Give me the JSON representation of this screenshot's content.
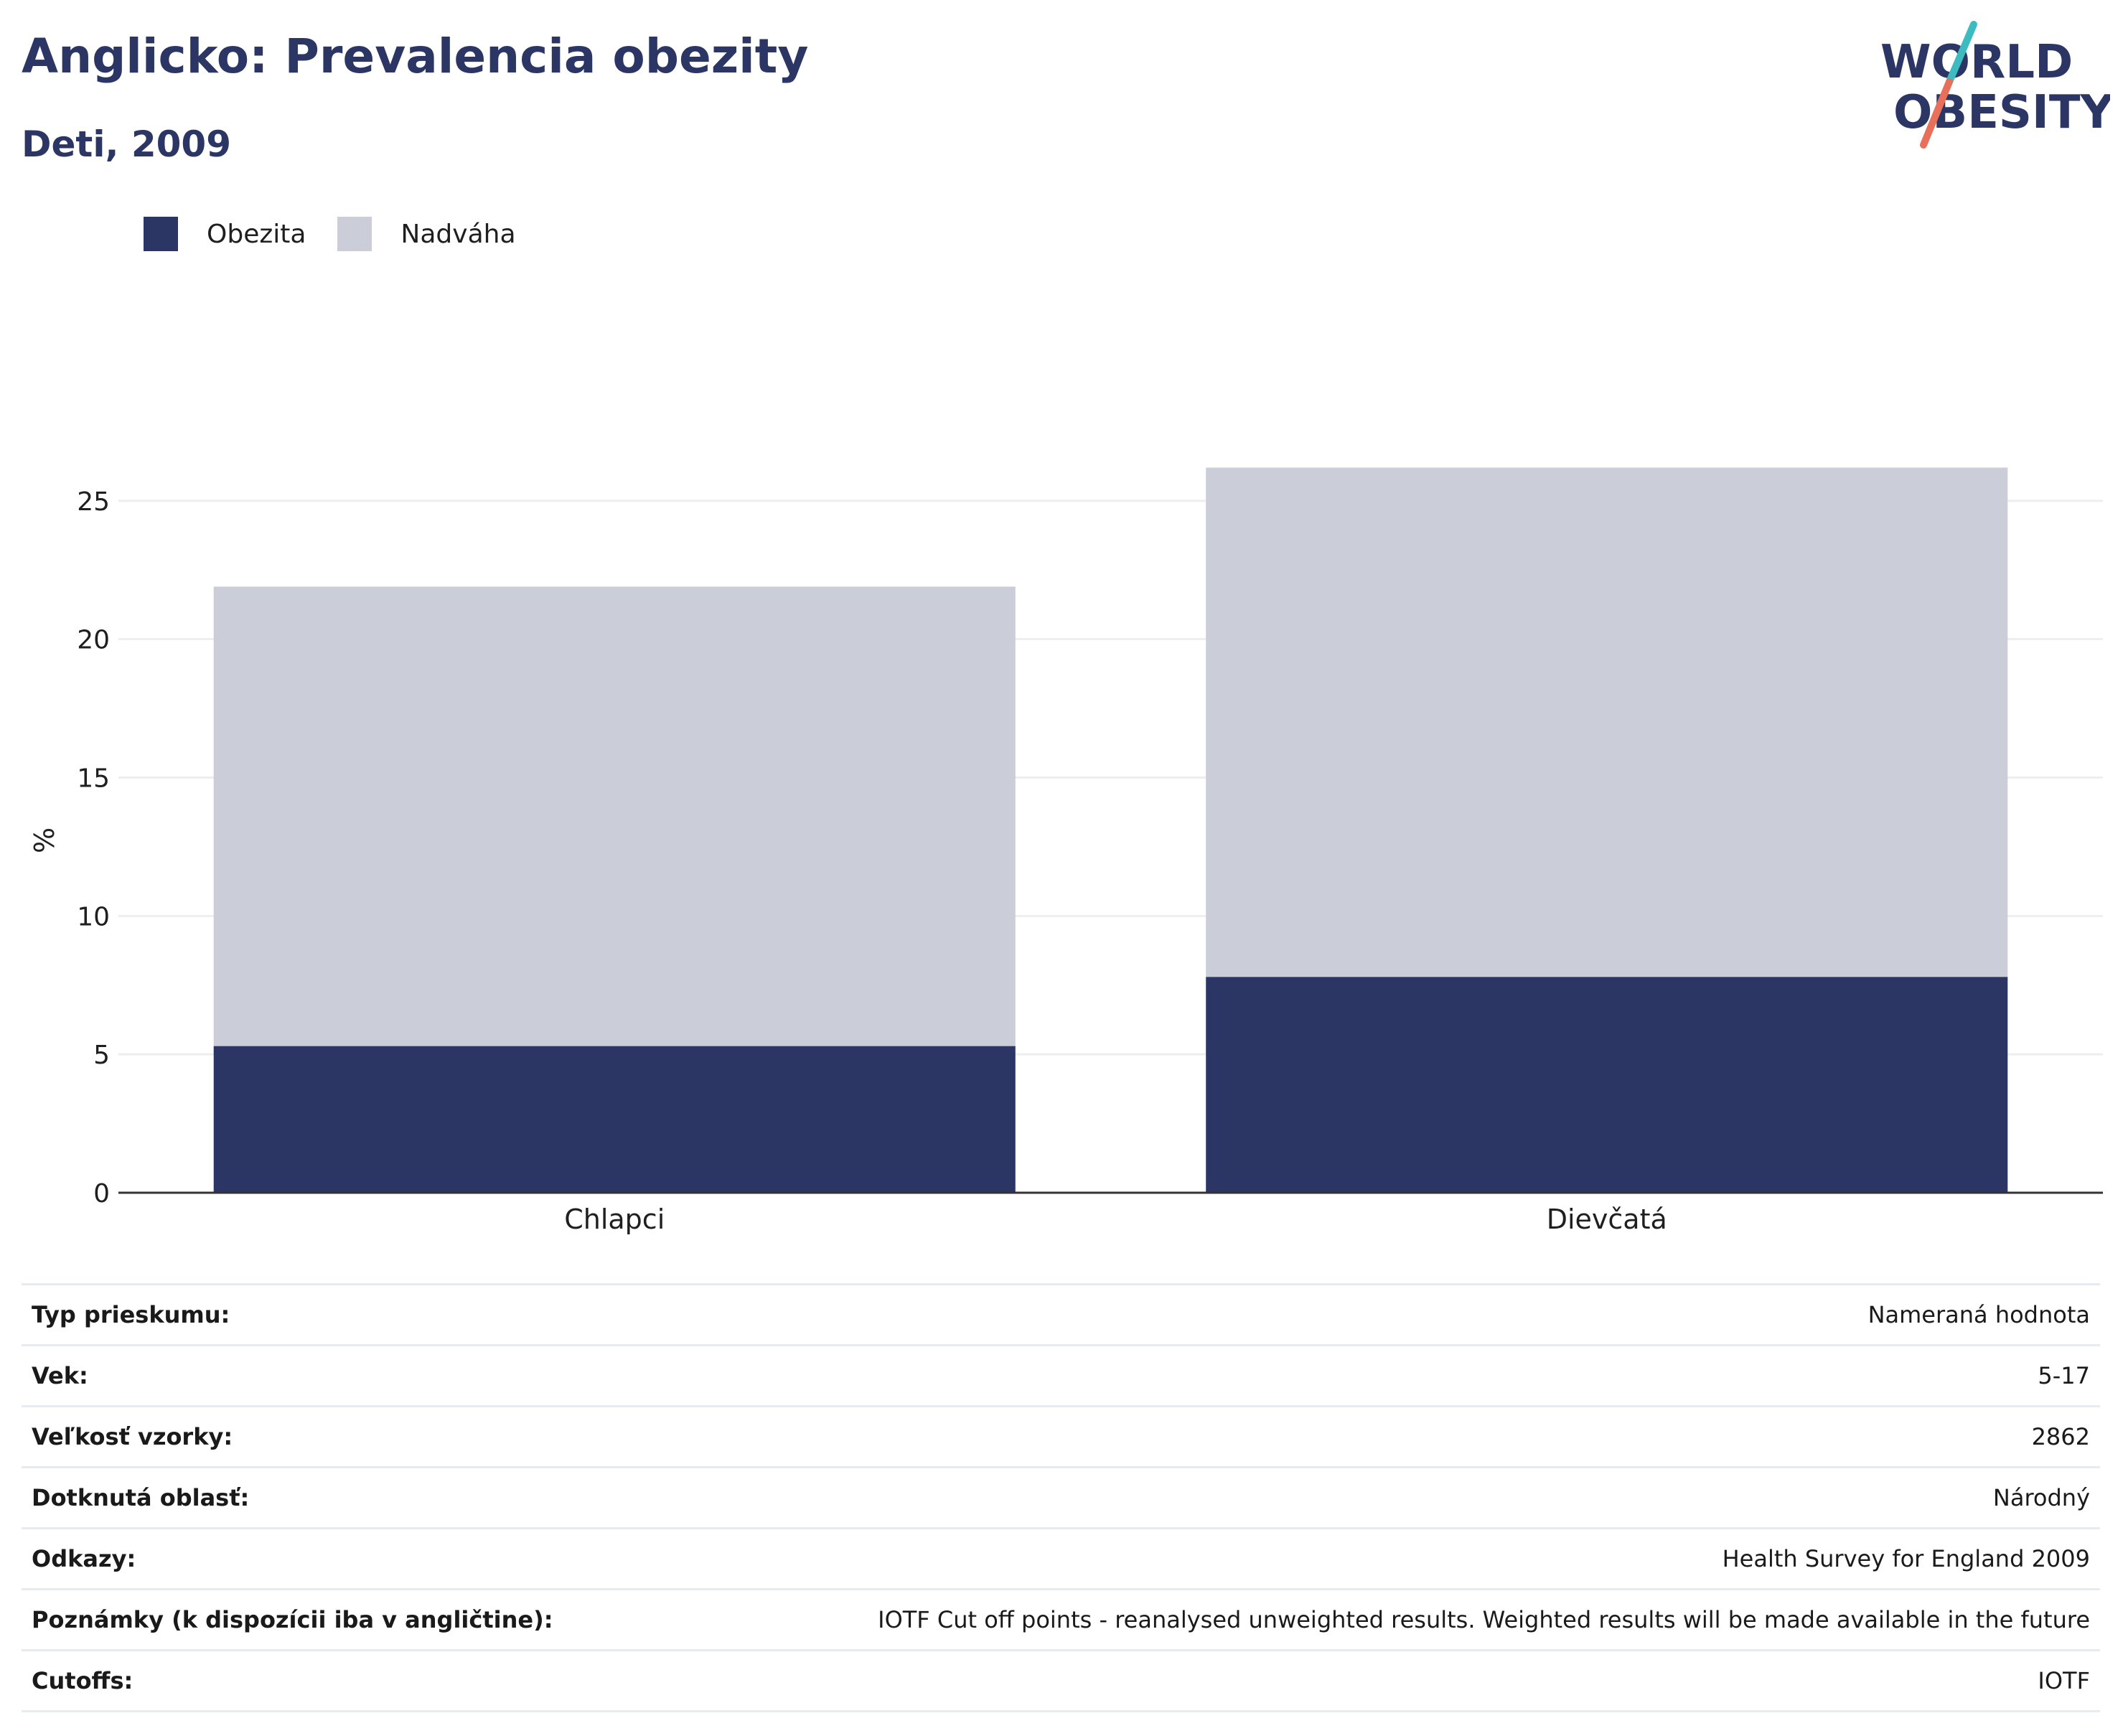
{
  "header": {
    "title": "Anglicko: Prevalencia obezity",
    "subtitle": "Deti, 2009"
  },
  "logo": {
    "line1": "WORLD",
    "line2": "OBESITY"
  },
  "colors": {
    "title": "#2b3664",
    "obesity": "#2b3664",
    "overweight": "#cbcdd8",
    "grid": "#eeeeee",
    "logo_teal": "#3cbcc0",
    "logo_coral": "#e8705a"
  },
  "legend": [
    {
      "label": "Obezita",
      "color": "#2b3664"
    },
    {
      "label": "Nadváha",
      "color": "#cbcdd8"
    }
  ],
  "chart_data": {
    "type": "bar",
    "stacked": true,
    "categories": [
      "Chlapci",
      "Dievčatá"
    ],
    "series": [
      {
        "name": "Obezita",
        "values": [
          5.3,
          7.8
        ]
      },
      {
        "name": "Nadváha",
        "values": [
          16.6,
          18.4
        ]
      }
    ],
    "ylabel": "%",
    "ylim": [
      0,
      26.5
    ],
    "yticks": [
      0,
      5,
      10,
      15,
      20,
      25
    ],
    "grid": true,
    "legend_position": "top-left"
  },
  "info_table": [
    {
      "label": "Typ prieskumu:",
      "value": "Nameraná hodnota"
    },
    {
      "label": "Vek:",
      "value": "5-17"
    },
    {
      "label": "Veľkosť vzorky:",
      "value": "2862"
    },
    {
      "label": "Dotknutá oblasť:",
      "value": "Národný"
    },
    {
      "label": "Odkazy:",
      "value": "Health Survey for England 2009"
    },
    {
      "label": "Poznámky (k dispozícii iba v angličtine):",
      "value": "IOTF Cut off points - reanalysed unweighted results. Weighted results will be made available in the future"
    },
    {
      "label": "Cutoffs:",
      "value": "IOTF"
    }
  ]
}
